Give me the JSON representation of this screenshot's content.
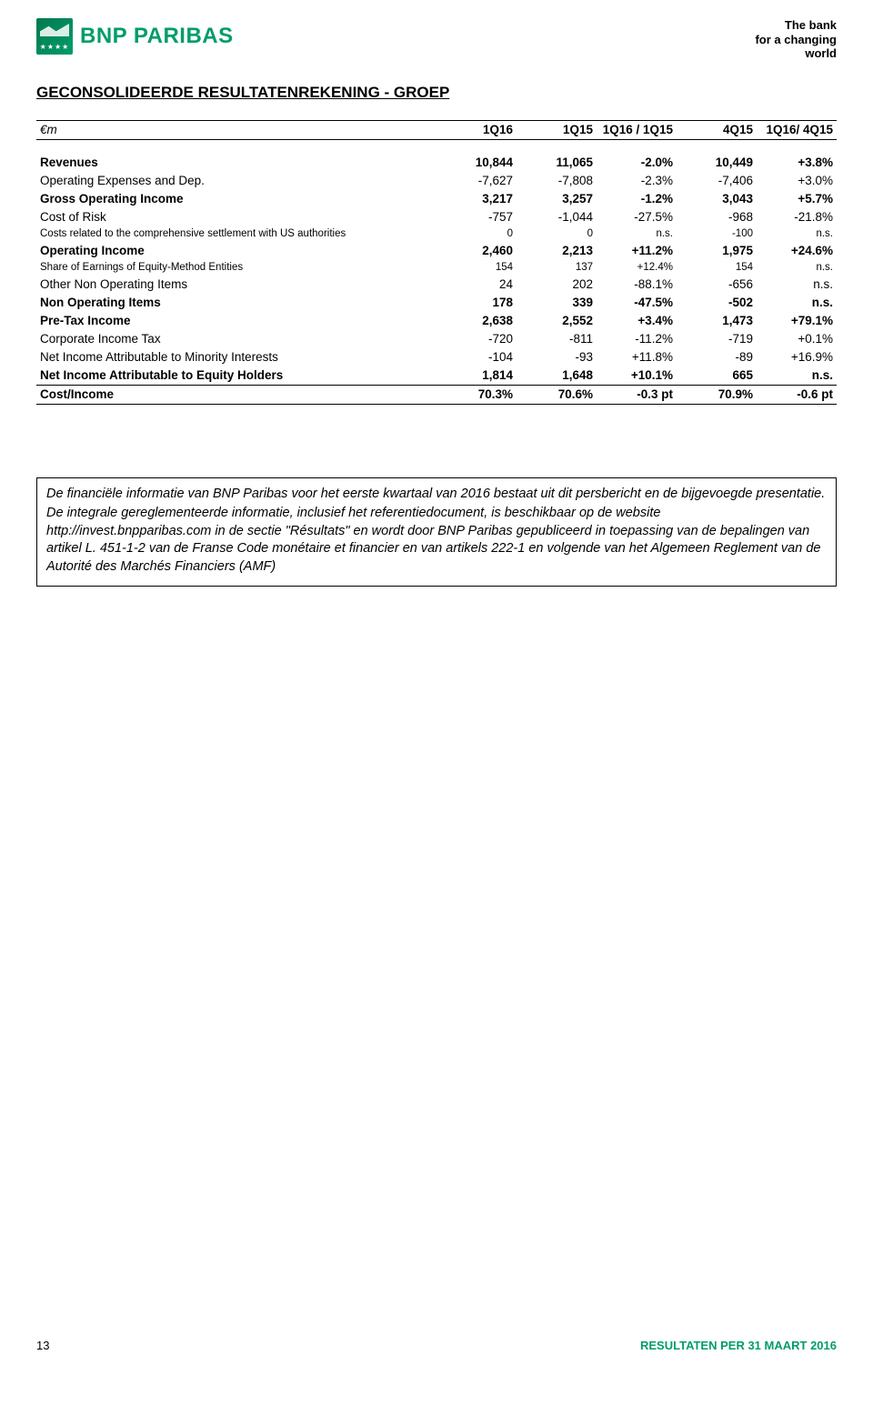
{
  "header": {
    "brand": "BNP PARIBAS",
    "tagline_l1": "The bank",
    "tagline_l2": "for a changing",
    "tagline_l3": "world"
  },
  "title": "GECONSOLIDEERDE RESULTATENREKENING - GROEP",
  "table": {
    "unit_label": "€m",
    "columns": [
      "1Q16",
      "1Q15",
      "1Q16 / 1Q15",
      "4Q15",
      "1Q16/ 4Q15"
    ],
    "rows": [
      {
        "style": "bold",
        "label": "Revenues",
        "v": [
          "10,844",
          "11,065",
          "-2.0%",
          "10,449",
          "+3.8%"
        ]
      },
      {
        "label": "Operating Expenses and Dep.",
        "v": [
          "-7,627",
          "-7,808",
          "-2.3%",
          "-7,406",
          "+3.0%"
        ]
      },
      {
        "style": "bold",
        "label": "Gross Operating Income",
        "v": [
          "3,217",
          "3,257",
          "-1.2%",
          "3,043",
          "+5.7%"
        ]
      },
      {
        "label": "Cost of Risk",
        "v": [
          "-757",
          "-1,044",
          "-27.5%",
          "-968",
          "-21.8%"
        ]
      },
      {
        "style": "small",
        "label": "Costs related to the comprehensive settlement with US authorities",
        "v": [
          "0",
          "0",
          "n.s.",
          "-100",
          "n.s."
        ]
      },
      {
        "style": "bold",
        "label": "Operating Income",
        "v": [
          "2,460",
          "2,213",
          "+11.2%",
          "1,975",
          "+24.6%"
        ]
      },
      {
        "style": "small",
        "label": "Share of Earnings of Equity-Method Entities",
        "v": [
          "154",
          "137",
          "+12.4%",
          "154",
          "n.s."
        ]
      },
      {
        "label": "Other Non Operating Items",
        "v": [
          "24",
          "202",
          "-88.1%",
          "-656",
          "n.s."
        ]
      },
      {
        "style": "bold",
        "label": "Non Operating Items",
        "v": [
          "178",
          "339",
          "-47.5%",
          "-502",
          "n.s."
        ]
      },
      {
        "style": "bold",
        "label": "Pre-Tax Income",
        "v": [
          "2,638",
          "2,552",
          "+3.4%",
          "1,473",
          "+79.1%"
        ]
      },
      {
        "label": "Corporate Income Tax",
        "v": [
          "-720",
          "-811",
          "-11.2%",
          "-719",
          "+0.1%"
        ]
      },
      {
        "label": "Net Income Attributable to Minority Interests",
        "v": [
          "-104",
          "-93",
          "+11.8%",
          "-89",
          "+16.9%"
        ]
      },
      {
        "style": "bold",
        "label": "Net Income Attributable to Equity Holders",
        "v": [
          "1,814",
          "1,648",
          "+10.1%",
          "665",
          "n.s."
        ]
      }
    ],
    "summary": {
      "label": "Cost/Income",
      "v": [
        "70.3%",
        "70.6%",
        "-0.3 pt",
        "70.9%",
        "-0.6 pt"
      ]
    }
  },
  "note": {
    "p1": "De financiële informatie van BNP Paribas voor het eerste kwartaal van 2016 bestaat uit dit persbericht en de bijgevoegde presentatie.",
    "p2": "De integrale gereglementeerde informatie, inclusief het referentiedocument, is beschikbaar op de website http://invest.bnpparibas.com in de sectie \"Résultats\" en wordt door BNP Paribas gepubliceerd in toepassing van de bepalingen van artikel L. 451-1-2 van de Franse Code monétaire et financier en van artikels 222-1 en volgende van het Algemeen Reglement van de Autorité des Marchés Financiers (AMF)"
  },
  "footer": {
    "page_num": "13",
    "right_text": "RESULTATEN PER 31 MAART 2016"
  },
  "style": {
    "brand_color": "#009d68",
    "text_color": "#000000",
    "font_family": "Arial",
    "border_color": "#000000"
  }
}
